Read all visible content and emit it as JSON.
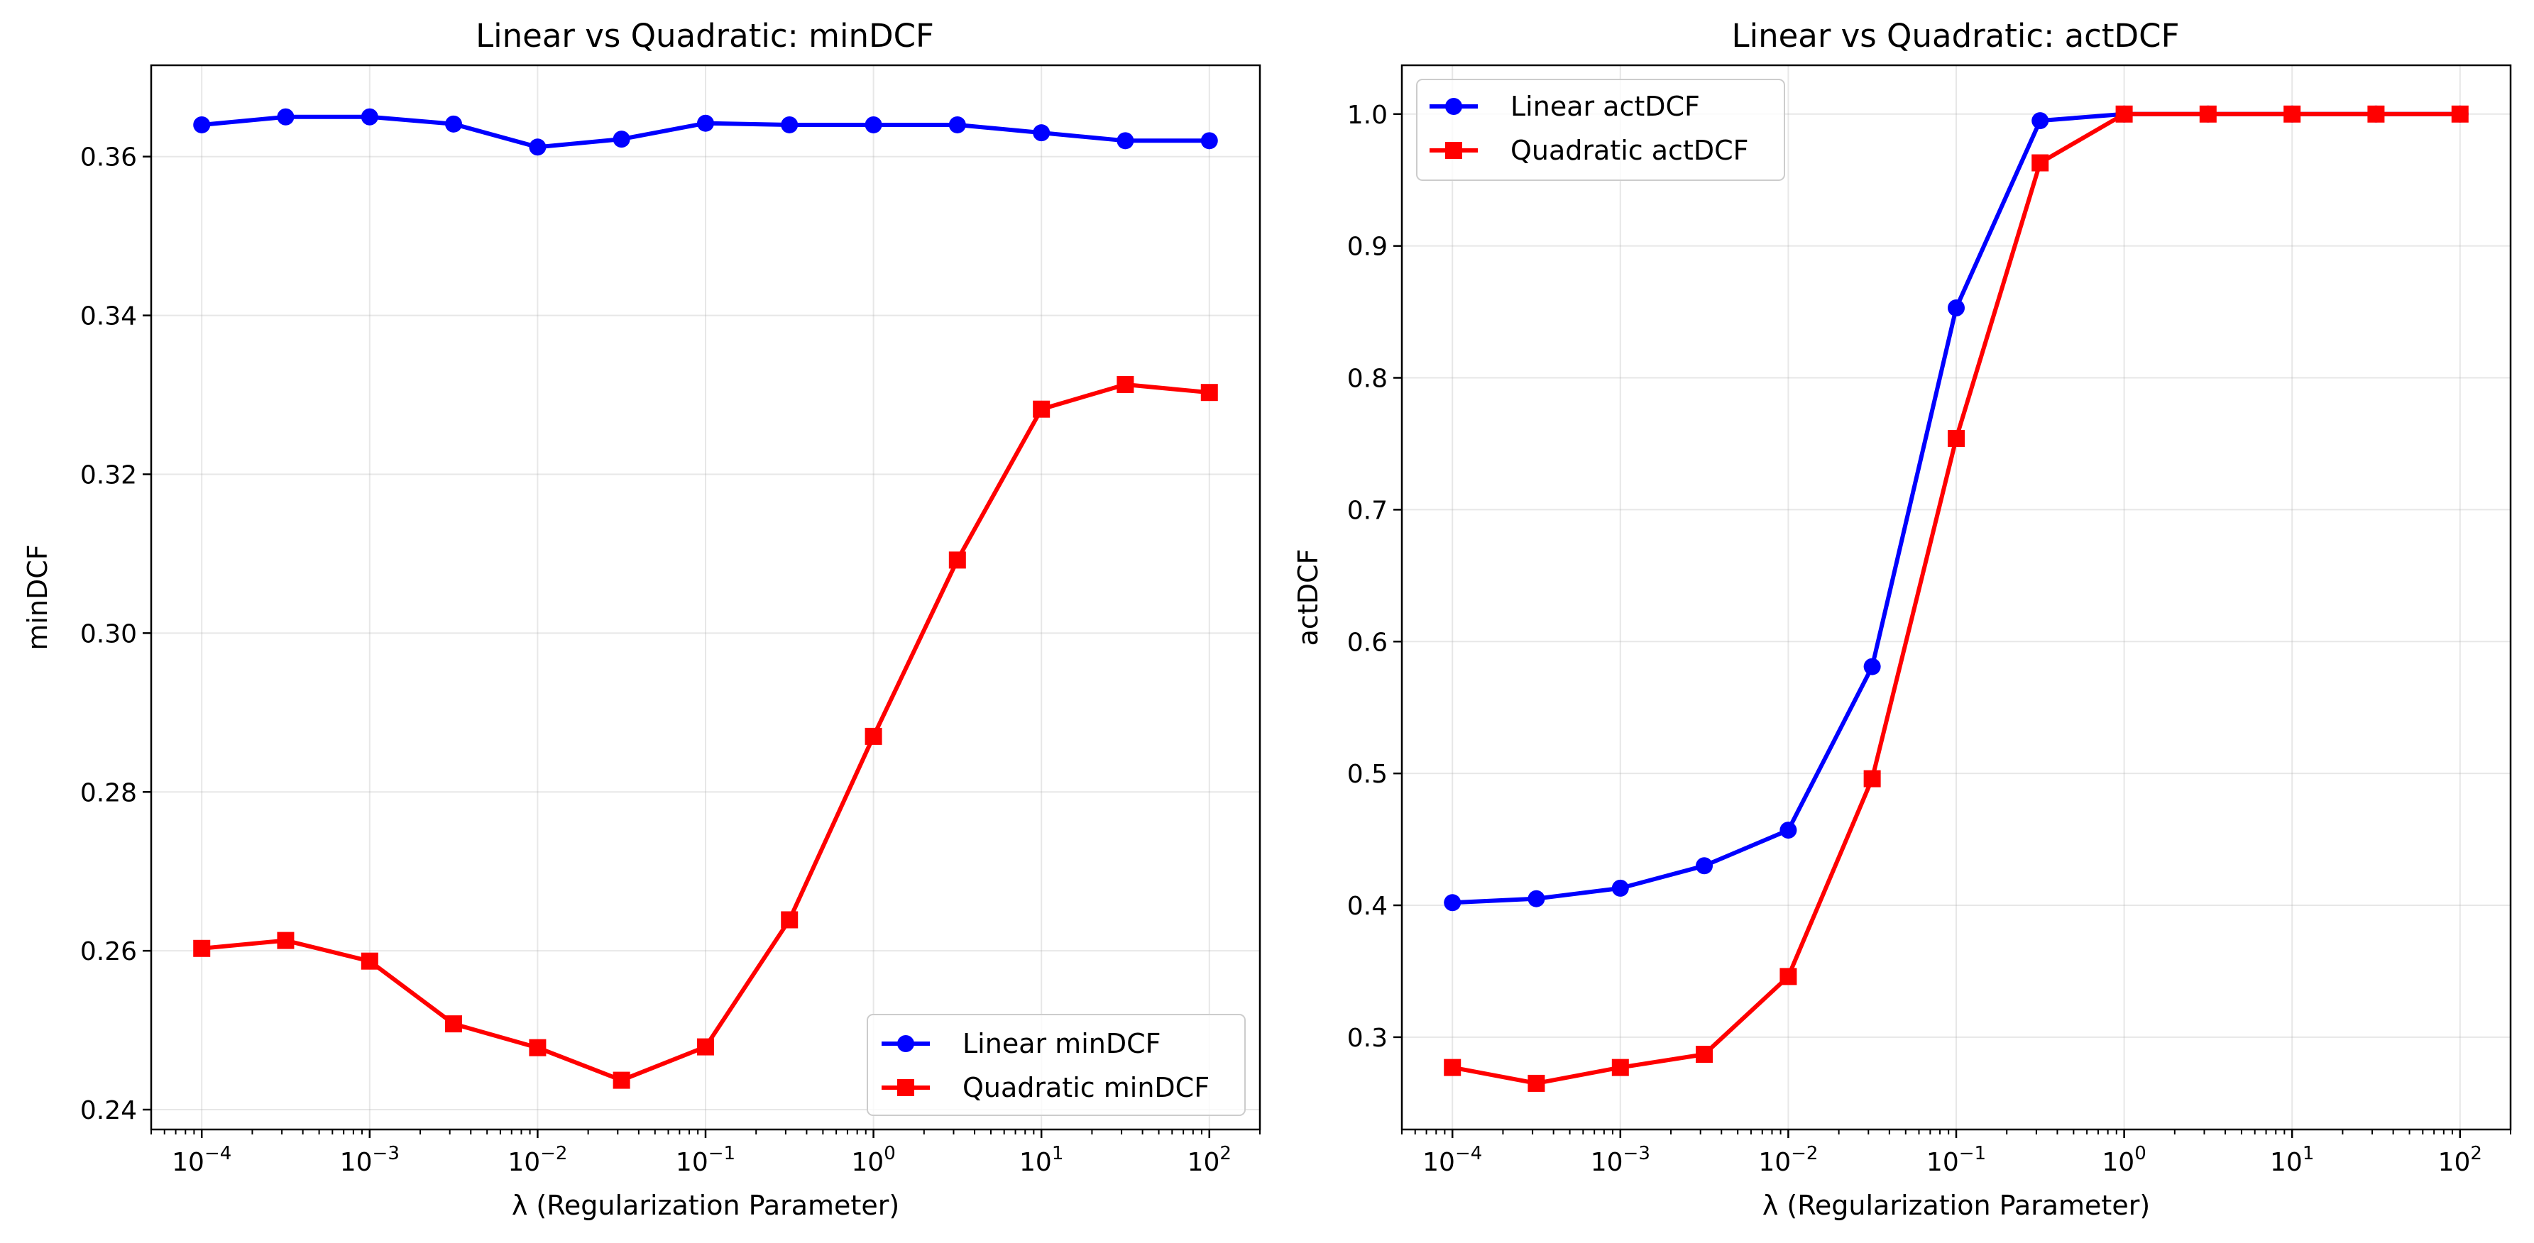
{
  "chart_data": [
    {
      "type": "line",
      "title": "Linear vs Quadratic: minDCF",
      "xlabel": "λ (Regularization Parameter)",
      "ylabel": "minDCF",
      "xscale": "log",
      "xlim": [
        5e-05,
        200
      ],
      "ylim": [
        0.2375,
        0.3715
      ],
      "xticks": [
        "10⁻⁴",
        "10⁻³",
        "10⁻²",
        "10⁻¹",
        "10⁰",
        "10¹",
        "10²"
      ],
      "yticks": [
        "0.24",
        "0.26",
        "0.28",
        "0.30",
        "0.32",
        "0.34",
        "0.36"
      ],
      "yticks_values": [
        0.24,
        0.26,
        0.28,
        0.3,
        0.32,
        0.34,
        0.36
      ],
      "grid": true,
      "legend_position": "lower-right",
      "x": [
        0.0001,
        0.000316,
        0.001,
        0.00316,
        0.01,
        0.0316,
        0.1,
        0.316,
        1,
        3.16,
        10,
        31.6,
        100
      ],
      "series": [
        {
          "name": "Linear minDCF",
          "color": "#0000ff",
          "marker": "circle",
          "values": [
            0.364,
            0.365,
            0.365,
            0.3641,
            0.3612,
            0.3622,
            0.3642,
            0.364,
            0.364,
            0.364,
            0.363,
            0.362,
            0.362
          ]
        },
        {
          "name": "Quadratic minDCF",
          "color": "#ff0000",
          "marker": "square",
          "values": [
            0.2603,
            0.2613,
            0.2587,
            0.2508,
            0.2478,
            0.2437,
            0.2479,
            0.2639,
            0.287,
            0.3092,
            0.3282,
            0.3313,
            0.3303
          ]
        }
      ]
    },
    {
      "type": "line",
      "title": "Linear vs Quadratic: actDCF",
      "xlabel": "λ (Regularization Parameter)",
      "ylabel": "actDCF",
      "xscale": "log",
      "xlim": [
        5e-05,
        200
      ],
      "ylim": [
        0.23,
        1.037
      ],
      "xticks": [
        "10⁻⁴",
        "10⁻³",
        "10⁻²",
        "10⁻¹",
        "10⁰",
        "10¹",
        "10²"
      ],
      "yticks": [
        "0.3",
        "0.4",
        "0.5",
        "0.6",
        "0.7",
        "0.8",
        "0.9",
        "1.0"
      ],
      "yticks_values": [
        0.3,
        0.4,
        0.5,
        0.6,
        0.7,
        0.8,
        0.9,
        1.0
      ],
      "grid": true,
      "legend_position": "upper-left",
      "x": [
        0.0001,
        0.000316,
        0.001,
        0.00316,
        0.01,
        0.0316,
        0.1,
        0.316,
        1,
        3.16,
        10,
        31.6,
        100
      ],
      "series": [
        {
          "name": "Linear actDCF",
          "color": "#0000ff",
          "marker": "circle",
          "values": [
            0.402,
            0.405,
            0.413,
            0.43,
            0.457,
            0.581,
            0.853,
            0.995,
            1.0,
            1.0,
            1.0,
            1.0,
            1.0
          ]
        },
        {
          "name": "Quadratic actDCF",
          "color": "#ff0000",
          "marker": "square",
          "values": [
            0.277,
            0.265,
            0.277,
            0.287,
            0.346,
            0.496,
            0.754,
            0.963,
            1.0,
            1.0,
            1.0,
            1.0,
            1.0
          ]
        }
      ]
    }
  ]
}
